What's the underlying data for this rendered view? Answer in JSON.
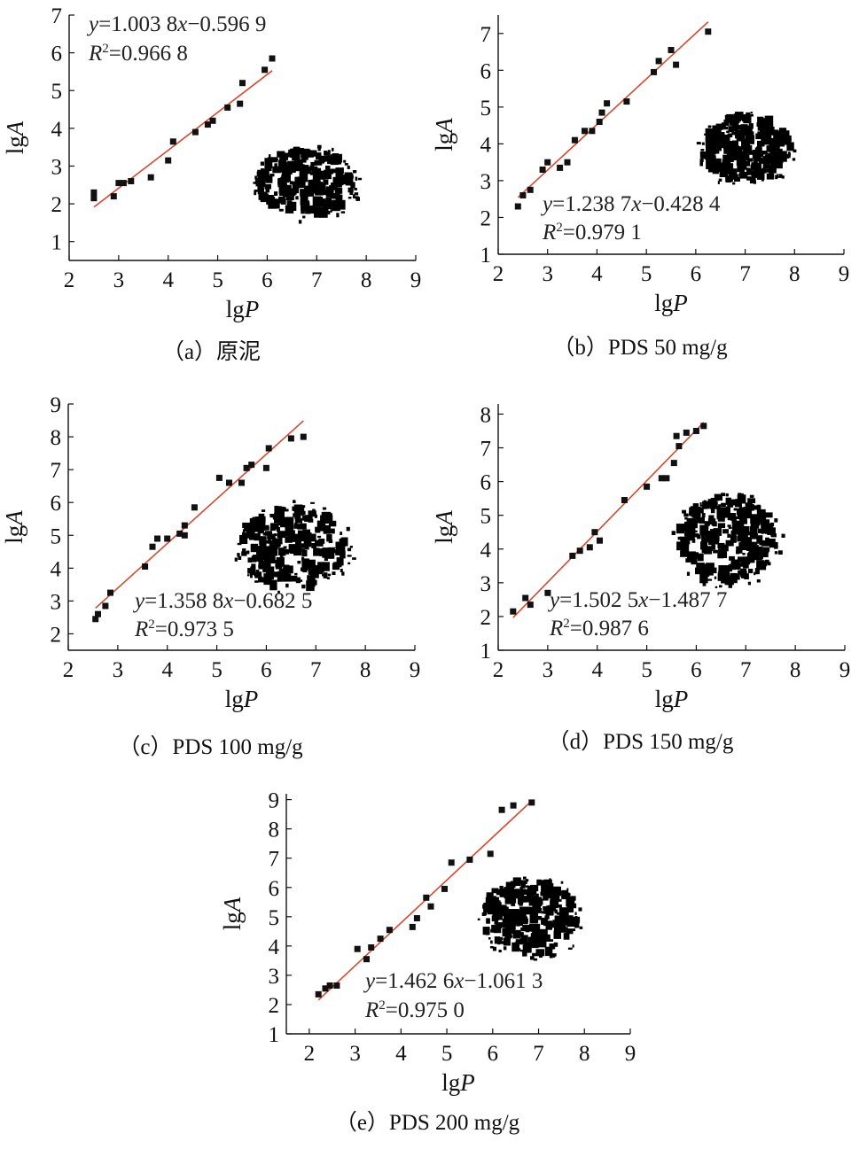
{
  "colors": {
    "fit_line": "#d9472b",
    "points": "#111111",
    "axis": "#111111",
    "floc": "#000000"
  },
  "chart_data": [
    {
      "id": "a",
      "type": "scatter",
      "caption": "（a）原泥",
      "xlabel_base": "lg",
      "xlabel_var": "P",
      "ylabel_base": "lg",
      "ylabel_var": "A",
      "xlim": [
        2,
        9
      ],
      "ylim": [
        0.5,
        7
      ],
      "xticks": [
        2,
        3,
        4,
        5,
        6,
        7,
        8,
        9
      ],
      "yticks": [
        1,
        2,
        3,
        4,
        5,
        6,
        7
      ],
      "points": [
        [
          2.5,
          2.15
        ],
        [
          2.5,
          2.3
        ],
        [
          2.9,
          2.2
        ],
        [
          3.0,
          2.55
        ],
        [
          3.1,
          2.55
        ],
        [
          3.25,
          2.6
        ],
        [
          3.65,
          2.7
        ],
        [
          4.0,
          3.15
        ],
        [
          4.1,
          3.65
        ],
        [
          4.55,
          3.9
        ],
        [
          4.8,
          4.1
        ],
        [
          4.9,
          4.2
        ],
        [
          5.2,
          4.55
        ],
        [
          5.45,
          4.65
        ],
        [
          5.5,
          5.2
        ],
        [
          5.95,
          5.55
        ],
        [
          6.1,
          5.85
        ]
      ],
      "fit": {
        "slope": 1.0038,
        "intercept": -0.5969,
        "x_range": [
          2.5,
          6.1
        ]
      },
      "eq_y_coef": "1.003 8",
      "eq_y_rest": "−0.596 9",
      "eq_r2": "0.966 8"
    },
    {
      "id": "b",
      "type": "scatter",
      "caption": "（b）PDS 50 mg/g",
      "xlabel_base": "lg",
      "xlabel_var": "P",
      "ylabel_base": "lg",
      "ylabel_var": "A",
      "xlim": [
        2,
        9
      ],
      "ylim": [
        1,
        7.5
      ],
      "xticks": [
        2,
        3,
        4,
        5,
        6,
        7,
        8,
        9
      ],
      "yticks": [
        1,
        2,
        3,
        4,
        5,
        6,
        7
      ],
      "points": [
        [
          2.4,
          2.3
        ],
        [
          2.5,
          2.6
        ],
        [
          2.65,
          2.75
        ],
        [
          2.9,
          3.3
        ],
        [
          3.0,
          3.5
        ],
        [
          3.25,
          3.35
        ],
        [
          3.4,
          3.5
        ],
        [
          3.55,
          4.1
        ],
        [
          3.75,
          4.35
        ],
        [
          3.9,
          4.35
        ],
        [
          4.05,
          4.6
        ],
        [
          4.1,
          4.85
        ],
        [
          4.2,
          5.1
        ],
        [
          4.6,
          5.15
        ],
        [
          5.15,
          5.95
        ],
        [
          5.25,
          6.25
        ],
        [
          5.5,
          6.55
        ],
        [
          5.6,
          6.15
        ],
        [
          6.25,
          7.05
        ]
      ],
      "fit": {
        "slope": 1.2387,
        "intercept": -0.4284,
        "x_range": [
          2.4,
          6.25
        ]
      },
      "eq_y_coef": "1.238 7",
      "eq_y_rest": "−0.428 4",
      "eq_r2": "0.979 1"
    },
    {
      "id": "c",
      "type": "scatter",
      "caption": "（c）PDS 100 mg/g",
      "xlabel_base": "lg",
      "xlabel_var": "P",
      "ylabel_base": "lg",
      "ylabel_var": "A",
      "xlim": [
        2,
        9
      ],
      "ylim": [
        1.5,
        9
      ],
      "xticks": [
        2,
        3,
        4,
        5,
        6,
        7,
        8,
        9
      ],
      "yticks": [
        2,
        3,
        4,
        5,
        6,
        7,
        8,
        9
      ],
      "points": [
        [
          2.55,
          2.45
        ],
        [
          2.6,
          2.6
        ],
        [
          2.75,
          2.85
        ],
        [
          2.85,
          3.25
        ],
        [
          3.55,
          4.05
        ],
        [
          3.7,
          4.65
        ],
        [
          3.8,
          4.9
        ],
        [
          4.0,
          4.9
        ],
        [
          4.25,
          5.05
        ],
        [
          4.35,
          5.3
        ],
        [
          4.35,
          5.0
        ],
        [
          4.55,
          5.85
        ],
        [
          5.05,
          6.75
        ],
        [
          5.25,
          6.6
        ],
        [
          5.5,
          6.6
        ],
        [
          5.6,
          7.05
        ],
        [
          5.7,
          7.15
        ],
        [
          6.0,
          7.05
        ],
        [
          6.05,
          7.65
        ],
        [
          6.5,
          7.95
        ],
        [
          6.75,
          8.0
        ]
      ],
      "fit": {
        "slope": 1.3588,
        "intercept": -0.6825,
        "x_range": [
          2.55,
          6.75
        ]
      },
      "eq_y_coef": "1.358 8",
      "eq_y_rest": "−0.682 5",
      "eq_r2": "0.973 5"
    },
    {
      "id": "d",
      "type": "scatter",
      "caption": "（d）PDS 150 mg/g",
      "xlabel_base": "lg",
      "xlabel_var": "P",
      "ylabel_base": "lg",
      "ylabel_var": "A",
      "xlim": [
        2,
        9
      ],
      "ylim": [
        1,
        8.3
      ],
      "xticks": [
        2,
        3,
        4,
        5,
        6,
        7,
        8,
        9
      ],
      "yticks": [
        1,
        2,
        3,
        4,
        5,
        6,
        7,
        8
      ],
      "points": [
        [
          2.3,
          2.15
        ],
        [
          2.55,
          2.55
        ],
        [
          2.65,
          2.35
        ],
        [
          3.0,
          2.7
        ],
        [
          3.5,
          3.8
        ],
        [
          3.65,
          3.95
        ],
        [
          3.85,
          4.05
        ],
        [
          3.95,
          4.5
        ],
        [
          4.05,
          4.25
        ],
        [
          4.55,
          5.45
        ],
        [
          5.0,
          5.85
        ],
        [
          5.3,
          6.1
        ],
        [
          5.4,
          6.1
        ],
        [
          5.55,
          6.55
        ],
        [
          5.6,
          7.35
        ],
        [
          5.65,
          7.05
        ],
        [
          5.8,
          7.45
        ],
        [
          6.0,
          7.5
        ],
        [
          6.15,
          7.65
        ]
      ],
      "fit": {
        "slope": 1.5025,
        "intercept": -1.4877,
        "x_range": [
          2.3,
          6.15
        ]
      },
      "eq_y_coef": "1.502 5",
      "eq_y_rest": "−1.487 7",
      "eq_r2": "0.987 6"
    },
    {
      "id": "e",
      "type": "scatter",
      "caption": "（e）PDS 200 mg/g",
      "xlabel_base": "lg",
      "xlabel_var": "P",
      "ylabel_base": "lg",
      "ylabel_var": "A",
      "xlim": [
        1.5,
        9
      ],
      "ylim": [
        1,
        9.2
      ],
      "xticks": [
        2,
        3,
        4,
        5,
        6,
        7,
        8,
        9
      ],
      "yticks": [
        1,
        2,
        3,
        4,
        5,
        6,
        7,
        8,
        9
      ],
      "points": [
        [
          2.2,
          2.35
        ],
        [
          2.35,
          2.55
        ],
        [
          2.45,
          2.65
        ],
        [
          2.6,
          2.65
        ],
        [
          3.05,
          3.9
        ],
        [
          3.25,
          3.55
        ],
        [
          3.35,
          3.95
        ],
        [
          3.55,
          4.25
        ],
        [
          3.75,
          4.55
        ],
        [
          4.25,
          4.65
        ],
        [
          4.35,
          4.95
        ],
        [
          4.55,
          5.65
        ],
        [
          4.65,
          5.35
        ],
        [
          4.95,
          5.95
        ],
        [
          5.1,
          6.85
        ],
        [
          5.5,
          6.95
        ],
        [
          5.95,
          7.15
        ],
        [
          6.2,
          8.65
        ],
        [
          6.45,
          8.8
        ],
        [
          6.85,
          8.9
        ]
      ],
      "fit": {
        "slope": 1.4626,
        "intercept": -1.0613,
        "x_range": [
          2.2,
          6.85
        ]
      },
      "eq_y_coef": "1.462 6",
      "eq_y_rest": "−1.061 3",
      "eq_r2": "0.975 0"
    }
  ]
}
